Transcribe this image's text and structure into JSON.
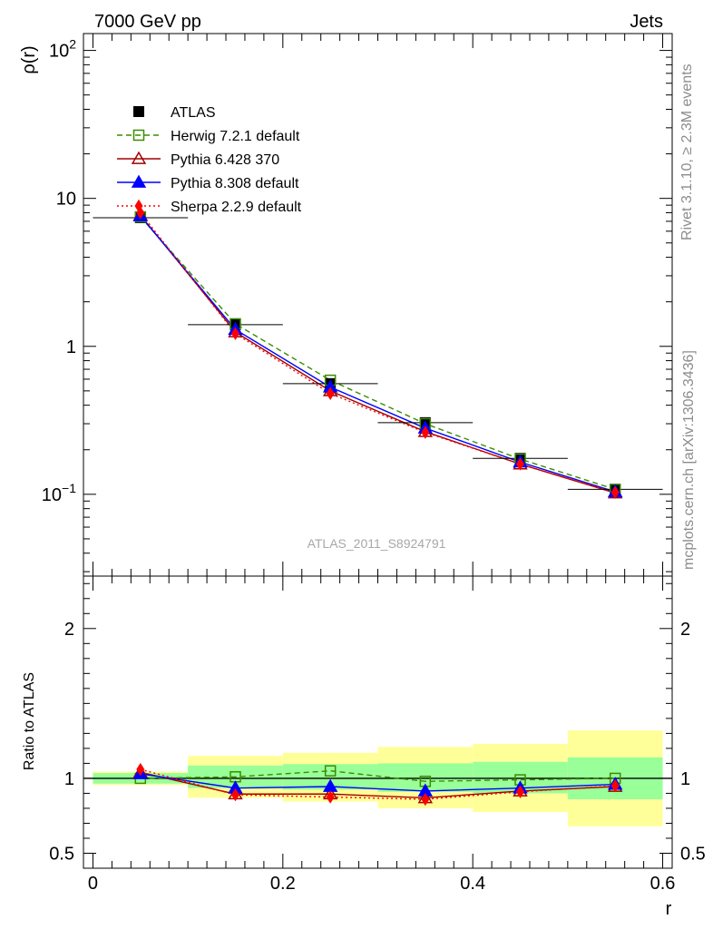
{
  "header": {
    "left_title": "7000 GeV pp",
    "right_title": "Jets"
  },
  "side_labels": {
    "rivet": "Rivet 3.1.10, ≥ 2.3M events",
    "mcplots": "mcplots.cern.ch [arXiv:1306.3436]"
  },
  "watermark": "ATLAS_2011_S8924791",
  "colors": {
    "atlas": "#000000",
    "herwig": "#3a8c00",
    "pythia6": "#a00000",
    "pythia8": "#0000ff",
    "sherpa": "#ff0000",
    "band_inner": "#99ff99",
    "band_outer": "#ffff99"
  },
  "chart_data": [
    {
      "type": "line",
      "panel": "main",
      "ylabel": "ρ(r)",
      "yscale": "log",
      "ylim": [
        0.028,
        130
      ],
      "xlim": [
        -0.01,
        0.61
      ],
      "yticks": [
        {
          "v": 0.1,
          "base": "10",
          "exp": "−1"
        },
        {
          "v": 1,
          "base": "1",
          "exp": ""
        },
        {
          "v": 10,
          "base": "10",
          "exp": ""
        },
        {
          "v": 100,
          "base": "10",
          "exp": "2"
        }
      ],
      "x": [
        0.05,
        0.15,
        0.25,
        0.35,
        0.45,
        0.55
      ],
      "xerr": 0.05,
      "legend_position": "top-left",
      "series": [
        {
          "key": "atlas",
          "name": "ATLAS",
          "values": [
            7.4,
            1.4,
            0.56,
            0.305,
            0.175,
            0.108
          ],
          "marker": "square-filled",
          "line": "none"
        },
        {
          "key": "herwig",
          "name": "Herwig 7.2.1 default",
          "values": [
            7.5,
            1.42,
            0.59,
            0.3,
            0.173,
            0.108
          ],
          "marker": "square-open",
          "line": "dashed"
        },
        {
          "key": "pythia6",
          "name": "Pythia 6.428 370",
          "values": [
            7.7,
            1.25,
            0.5,
            0.265,
            0.16,
            0.102
          ],
          "marker": "triangle-open",
          "line": "solid"
        },
        {
          "key": "pythia8",
          "name": "Pythia 8.308 default",
          "values": [
            7.6,
            1.3,
            0.53,
            0.28,
            0.165,
            0.104
          ],
          "marker": "triangle-filled",
          "line": "solid"
        },
        {
          "key": "sherpa",
          "name": "Sherpa 2.2.9 default",
          "values": [
            8.0,
            1.22,
            0.48,
            0.262,
            0.16,
            0.103
          ],
          "marker": "diamond-filled",
          "line": "dotted"
        }
      ]
    },
    {
      "type": "line",
      "panel": "ratio",
      "ylabel": "Ratio to ATLAS",
      "xlabel": "r",
      "ylim": [
        0.4,
        2.35
      ],
      "xlim": [
        -0.01,
        0.61
      ],
      "yticks": [
        0.5,
        1,
        2
      ],
      "yticklabels": [
        "0.5",
        "1",
        "2"
      ],
      "xticks": [
        0,
        0.2,
        0.4,
        0.6
      ],
      "xticklabels": [
        "0",
        "0.2",
        "0.4",
        "0.6"
      ],
      "x": [
        0.05,
        0.15,
        0.25,
        0.35,
        0.45,
        0.55
      ],
      "bands": {
        "inner": [
          [
            0.965,
            1.035
          ],
          [
            0.935,
            1.085
          ],
          [
            0.925,
            1.095
          ],
          [
            0.91,
            1.1
          ],
          [
            0.9,
            1.11
          ],
          [
            0.86,
            1.14
          ]
        ],
        "outer": [
          [
            0.955,
            1.045
          ],
          [
            0.87,
            1.15
          ],
          [
            0.845,
            1.17
          ],
          [
            0.8,
            1.21
          ],
          [
            0.775,
            1.23
          ],
          [
            0.68,
            1.32
          ]
        ]
      },
      "series": [
        {
          "key": "herwig",
          "name": "Herwig 7.2.1 default",
          "values": [
            1.0,
            1.01,
            1.05,
            0.98,
            0.99,
            1.0
          ]
        },
        {
          "key": "pythia6",
          "name": "Pythia 6.428 370",
          "values": [
            1.04,
            0.895,
            0.895,
            0.87,
            0.915,
            0.945
          ]
        },
        {
          "key": "pythia8",
          "name": "Pythia 8.308 default",
          "values": [
            1.03,
            0.935,
            0.945,
            0.915,
            0.935,
            0.96
          ]
        },
        {
          "key": "sherpa",
          "name": "Sherpa 2.2.9 default",
          "values": [
            1.06,
            0.89,
            0.875,
            0.86,
            0.91,
            0.95
          ]
        }
      ]
    }
  ]
}
